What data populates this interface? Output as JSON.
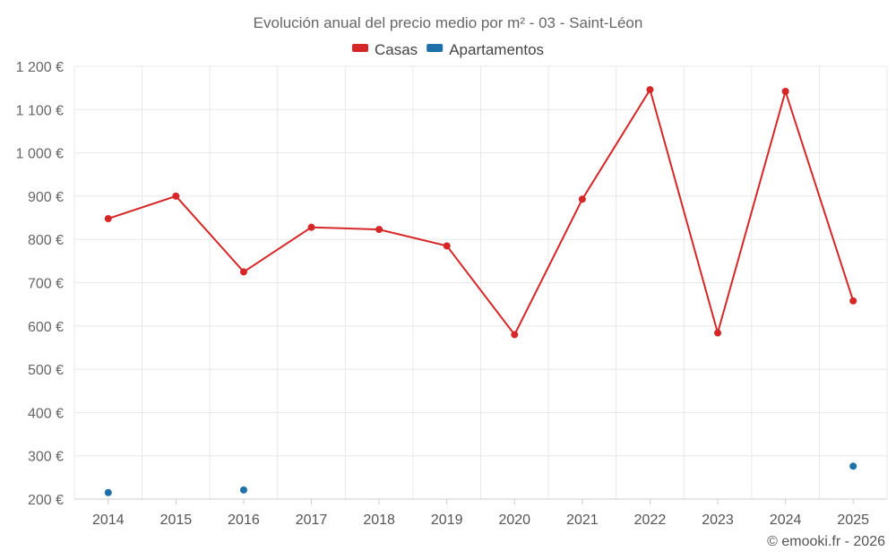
{
  "chart_data": {
    "type": "line",
    "title": "Evolución anual del precio medio por m² - 03 - Saint-Léon",
    "categories": [
      "2014",
      "2015",
      "2016",
      "2017",
      "2018",
      "2019",
      "2020",
      "2021",
      "2022",
      "2023",
      "2024",
      "2025"
    ],
    "series": [
      {
        "name": "Casas",
        "color": "#d62728",
        "values": [
          848,
          900,
          725,
          828,
          823,
          785,
          580,
          893,
          1146,
          584,
          1142,
          658
        ]
      },
      {
        "name": "Apartamentos",
        "color": "#1f6fa8",
        "values": [
          215,
          null,
          221,
          null,
          null,
          null,
          null,
          null,
          null,
          null,
          null,
          276
        ]
      }
    ],
    "yticks": [
      200,
      300,
      400,
      500,
      600,
      700,
      800,
      900,
      1000,
      1100,
      1200
    ],
    "ytick_labels": [
      "200 €",
      "300 €",
      "400 €",
      "500 €",
      "600 €",
      "700 €",
      "800 €",
      "900 €",
      "1 000 €",
      "1 100 €",
      "1 200 €"
    ],
    "ylim": [
      200,
      1200
    ],
    "xlabel": "",
    "ylabel": "",
    "legend_position": "top-center",
    "grid": true
  },
  "credit": "© emooki.fr - 2026"
}
